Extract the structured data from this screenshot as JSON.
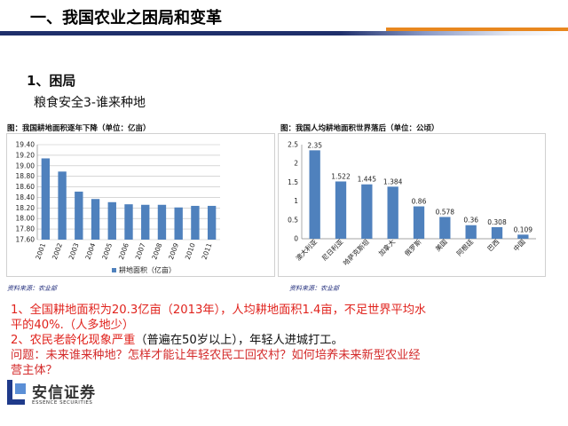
{
  "header": {
    "title": "一、我国农业之困局和变革"
  },
  "section": {
    "heading": "1、困局",
    "subheading": "粮食安全3-谁来种地"
  },
  "chart_data": [
    {
      "type": "bar",
      "title": "图：我国耕地面积逐年下降（单位：亿亩）",
      "categories": [
        "2001",
        "2002",
        "2003",
        "2004",
        "2005",
        "2006",
        "2007",
        "2008",
        "2009",
        "2010",
        "2011"
      ],
      "series": [
        {
          "name": "耕地面积（亿亩）",
          "values": [
            19.14,
            18.89,
            18.51,
            18.37,
            18.31,
            18.27,
            18.26,
            18.26,
            18.21,
            18.24,
            18.24
          ]
        }
      ],
      "ylim": [
        17.6,
        19.4
      ],
      "yticks": [
        "17.60",
        "17.80",
        "18.00",
        "18.20",
        "18.40",
        "18.60",
        "18.80",
        "19.00",
        "19.20",
        "19.40"
      ],
      "grid": true,
      "legend": "bottom",
      "color": "#4f81bd"
    },
    {
      "type": "bar",
      "title": "图：我国人均耕地面积世界落后（单位：公顷）",
      "categories": [
        "澳大利亚",
        "尼日利亚",
        "哈萨克斯坦",
        "加拿大",
        "俄罗斯",
        "美国",
        "阿根廷",
        "巴西",
        "中国"
      ],
      "values": [
        2.35,
        1.522,
        1.445,
        1.384,
        0.86,
        0.578,
        0.36,
        0.308,
        0.109
      ],
      "labels": [
        "2.35",
        "1.522",
        "1.445",
        "1.384",
        "0.86",
        "0.578",
        "0.36",
        "0.308",
        "0.109"
      ],
      "ylim": [
        0,
        2.5
      ],
      "yticks": [
        "0",
        "0.5",
        "1",
        "1.5",
        "2",
        "2.5"
      ],
      "grid": false,
      "color": "#4f81bd"
    }
  ],
  "sources": {
    "left": "资料来源：农业部",
    "right": "资料来源：农业部"
  },
  "body": {
    "line1": "1、全国耕地面积为20.3亿亩（2013年），人均耕地面积1.4亩，不足世界平均水",
    "line2": "平的40%.（人多地少）",
    "line3_red": "2、农民老龄化现象严重",
    "line3_black": "（普遍在50岁以上），年轻人进城打工。",
    "line4": "问题：未来谁来种地？怎样才能让年轻农民工回农村？如何培养未来新型农业经",
    "line5": "营主体？"
  },
  "logo": {
    "name": "安信证券",
    "sub": "ESSENCE SECURITIES",
    "icon": "essence-logo-icon"
  },
  "colors": {
    "title_bar": "#1f2f6b",
    "accent": "#e8871e",
    "bar": "#4f81bd",
    "red_text": "#e0231d"
  }
}
